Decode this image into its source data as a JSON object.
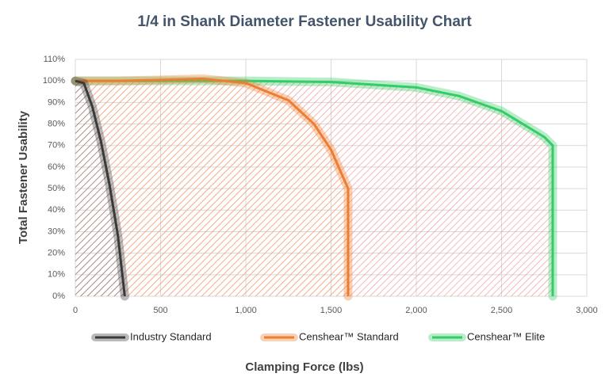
{
  "chart_data": {
    "type": "line",
    "title": "1/4 in Shank Diameter Fastener Usability Chart",
    "x_label": "Clamping Force (lbs)",
    "y_label": "Total Fastener Usability",
    "xlim": [
      0,
      3000
    ],
    "xticks": [
      0,
      500,
      {
        "value": 1000,
        "label": "1,000"
      },
      {
        "value": 1500,
        "label": "1,500"
      },
      {
        "value": 2000,
        "label": "2,000"
      },
      {
        "value": 2500,
        "label": "2,500"
      },
      {
        "value": 3000,
        "label": "3,000"
      }
    ],
    "ylim": [
      0,
      110
    ],
    "yticks": [
      {
        "value": 0,
        "label": "0%"
      },
      {
        "value": 10,
        "label": "10%"
      },
      {
        "value": 20,
        "label": "20%"
      },
      {
        "value": 30,
        "label": "30%"
      },
      {
        "value": 40,
        "label": "40%"
      },
      {
        "value": 50,
        "label": "50%"
      },
      {
        "value": 60,
        "label": "60%"
      },
      {
        "value": 70,
        "label": "70%"
      },
      {
        "value": 80,
        "label": "80%"
      },
      {
        "value": 90,
        "label": "90%"
      },
      {
        "value": 100,
        "label": "100%"
      },
      {
        "value": 110,
        "label": "110%"
      }
    ],
    "grid": true,
    "legend": "bottom",
    "series": [
      {
        "name": "Industry Standard",
        "color": "#3a3a3a",
        "hatch_color": "#7f7f7f",
        "x": [
          0,
          50,
          100,
          150,
          200,
          250,
          290
        ],
        "values": [
          100,
          99,
          88,
          72,
          52,
          28,
          0
        ]
      },
      {
        "name": "Censhear™ Standard",
        "color": "#ed7d31",
        "hatch_color": "#f4a06a",
        "x": [
          0,
          250,
          500,
          750,
          1000,
          1250,
          1400,
          1500,
          1600,
          1600
        ],
        "values": [
          100,
          100,
          100.5,
          101,
          99,
          91,
          80,
          68,
          50,
          0
        ]
      },
      {
        "name": "Censhear™ Elite",
        "color": "#33cc66",
        "hatch_color": "#f08a8a",
        "x": [
          0,
          500,
          1000,
          1500,
          2000,
          2250,
          2500,
          2750,
          2800,
          2800
        ],
        "values": [
          100,
          100,
          100,
          99.5,
          97,
          93,
          86,
          74,
          70,
          0
        ]
      }
    ]
  }
}
